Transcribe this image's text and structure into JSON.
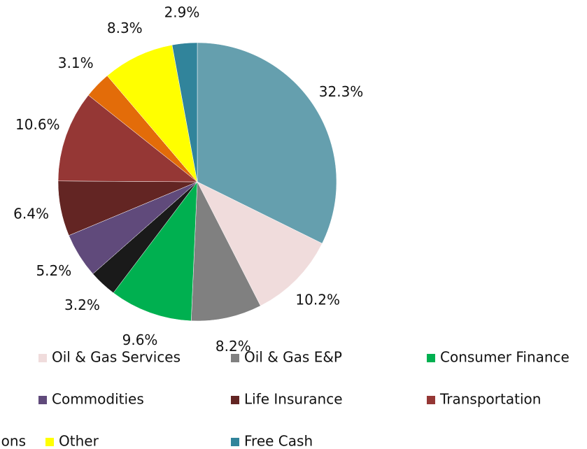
{
  "chart_data": {
    "type": "pie",
    "categories": [
      null,
      "Oil & Gas Services",
      "Oil & Gas E&P",
      "Consumer Finance",
      null,
      "Commodities",
      "Life Insurance",
      "Transportation",
      null,
      "Other",
      "Free Cash"
    ],
    "values": [
      32.3,
      10.2,
      8.2,
      9.6,
      3.2,
      5.2,
      6.4,
      10.6,
      3.1,
      8.3,
      2.9
    ],
    "value_labels": [
      "32.3%",
      "10.2%",
      "8.2%",
      "9.6%",
      "3.2%",
      "5.2%",
      "6.4%",
      "10.6%",
      "3.1%",
      "8.3%",
      "2.9%"
    ],
    "colors": [
      "#659fae",
      "#f0dcdc",
      "#808080",
      "#00b050",
      "#1a1a1a",
      "#604a7b",
      "#632523",
      "#953735",
      "#e36c09",
      "#ffff00",
      "#31849b"
    ],
    "legend_fragment": "ons"
  }
}
